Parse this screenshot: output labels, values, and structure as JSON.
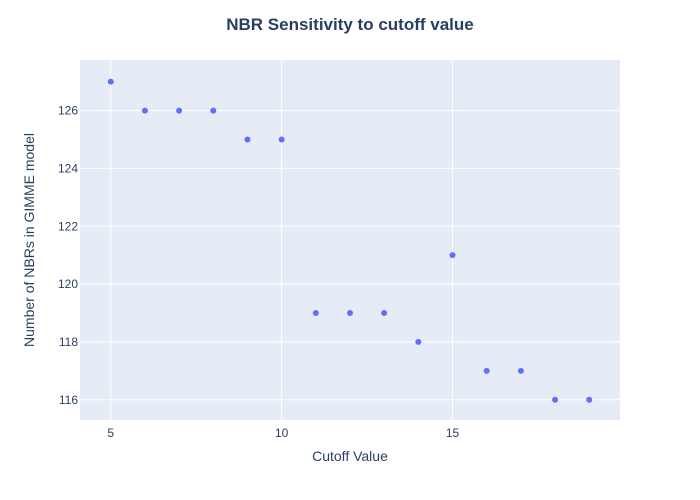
{
  "chart_data": {
    "type": "scatter",
    "title": "NBR Sensitivity to cutoff value",
    "xlabel": "Cutoff Value",
    "ylabel": "Number of NBRs in GIMME model",
    "xlim": [
      4.1,
      19.9
    ],
    "ylim": [
      115.3,
      127.75
    ],
    "xticks": [
      5,
      10,
      15
    ],
    "yticks": [
      116,
      118,
      120,
      122,
      124,
      126
    ],
    "grid": true,
    "series": [
      {
        "x": [
          5,
          6,
          7,
          8,
          9,
          10,
          11,
          12,
          13,
          14,
          15,
          16,
          17,
          18,
          19
        ],
        "y": [
          127,
          126,
          126,
          126,
          125,
          125,
          119,
          119,
          119,
          118,
          121,
          117,
          117,
          116,
          116
        ]
      }
    ],
    "colors": {
      "background": "#E5ECF6",
      "grid": "#ffffff",
      "marker": "#636EFA",
      "text": "#2a3f5f"
    }
  }
}
